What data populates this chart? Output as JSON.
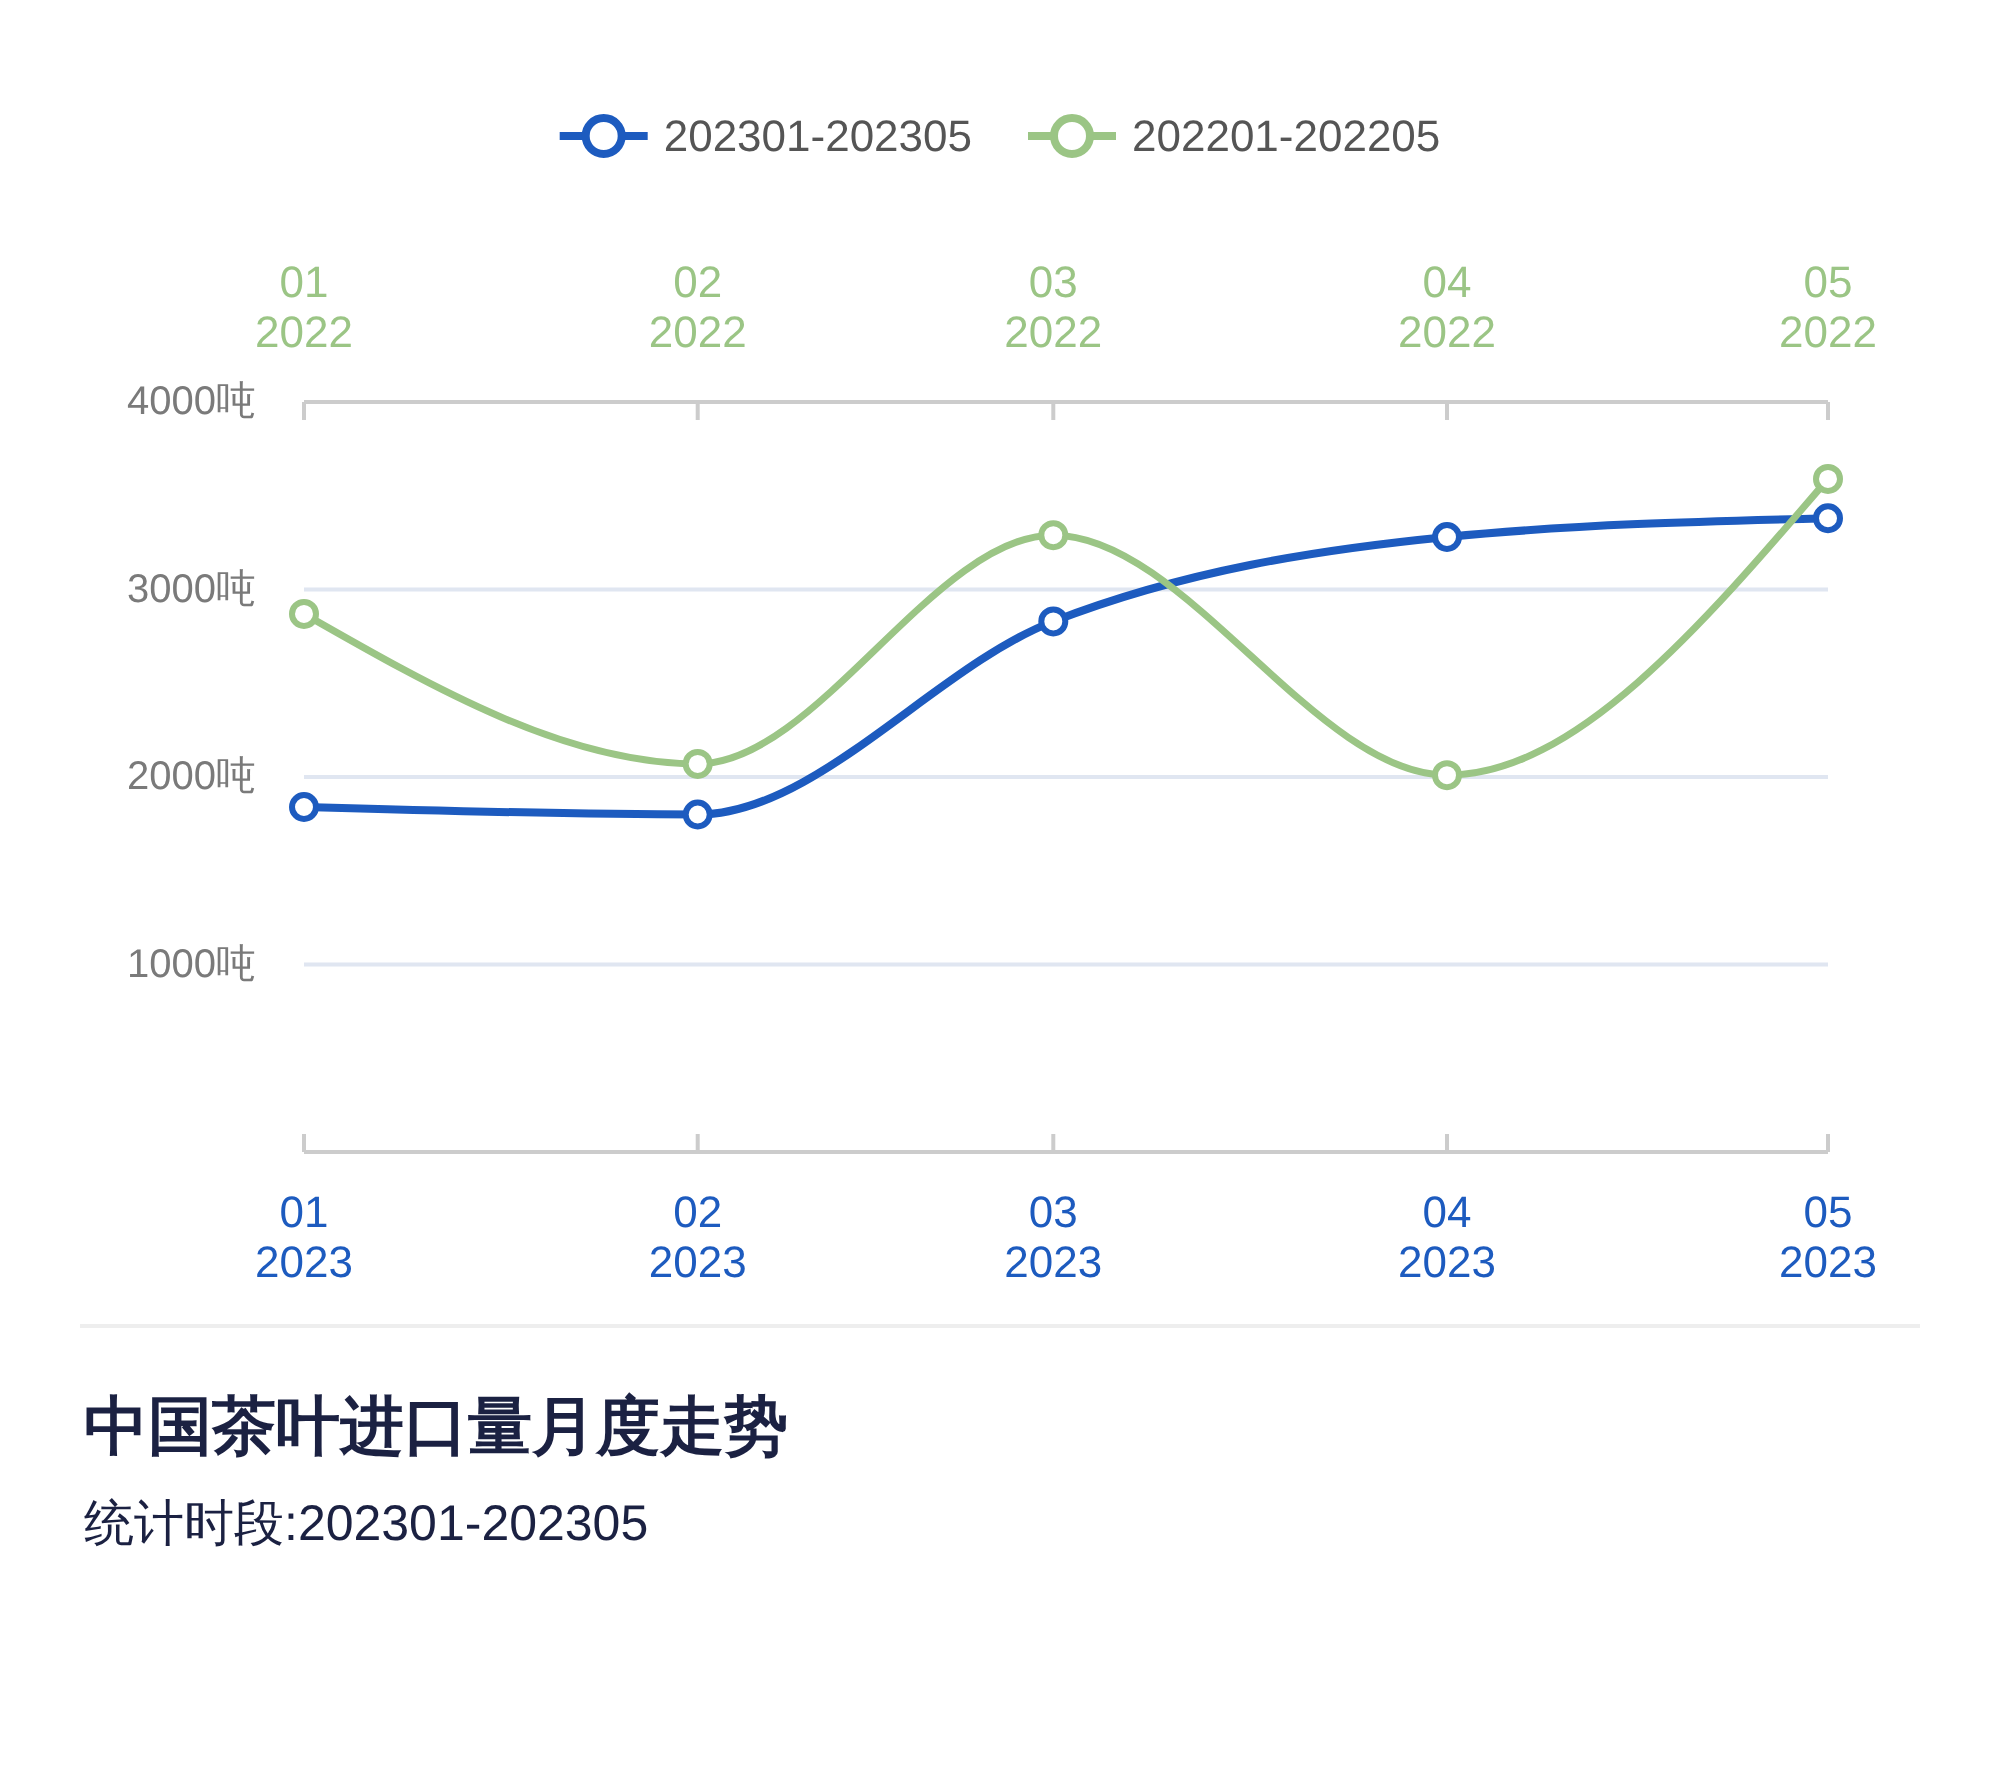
{
  "chart_data": {
    "type": "line",
    "title": "中国茶叶进口量月度走势",
    "subtitle": "统计时段:202301-202305",
    "x": [
      "2023-01",
      "2023-02",
      "2023-03",
      "2023-04",
      "2023-05"
    ],
    "xlim": [
      "2023-01",
      "2023-05"
    ],
    "xticks": [
      {
        "value": "2023-01",
        "label": "01\n2023"
      },
      {
        "value": "2023-02",
        "label": "02\n2023"
      },
      {
        "value": "2023-03",
        "label": "03\n2023"
      },
      {
        "value": "2023-04",
        "label": "04\n2023"
      },
      {
        "value": "2023-05",
        "label": "05\n2023"
      }
    ],
    "x2lim": [
      "2022-01",
      "2022-05"
    ],
    "x2ticks": [
      {
        "value": "2022-01",
        "label": "01\n2022"
      },
      {
        "value": "2022-02",
        "label": "02\n2022"
      },
      {
        "value": "2022-03",
        "label": "03\n2022"
      },
      {
        "value": "2022-04",
        "label": "04\n2022"
      },
      {
        "value": "2022-05",
        "label": "05\n2022"
      }
    ],
    "ylim": [
      0,
      4000
    ],
    "yticks": [
      {
        "value": 1000,
        "label": "1000吨"
      },
      {
        "value": 2000,
        "label": "2000吨"
      },
      {
        "value": 3000,
        "label": "3000吨"
      },
      {
        "value": 4000,
        "label": "4000吨"
      }
    ],
    "series": [
      {
        "name": "202301-202305",
        "color": "#1d5bbf",
        "values": [
          1840,
          1800,
          2830,
          3280,
          3380
        ]
      },
      {
        "name": "202201-202205",
        "color": "#9bc585",
        "axis": "x2",
        "x": [
          "2022-01",
          "2022-02",
          "2022-03",
          "2022-04",
          "2022-05"
        ],
        "values": [
          2870,
          2070,
          3290,
          2010,
          3590
        ]
      }
    ],
    "grid": "y",
    "legend": "top",
    "marker": "circle"
  }
}
